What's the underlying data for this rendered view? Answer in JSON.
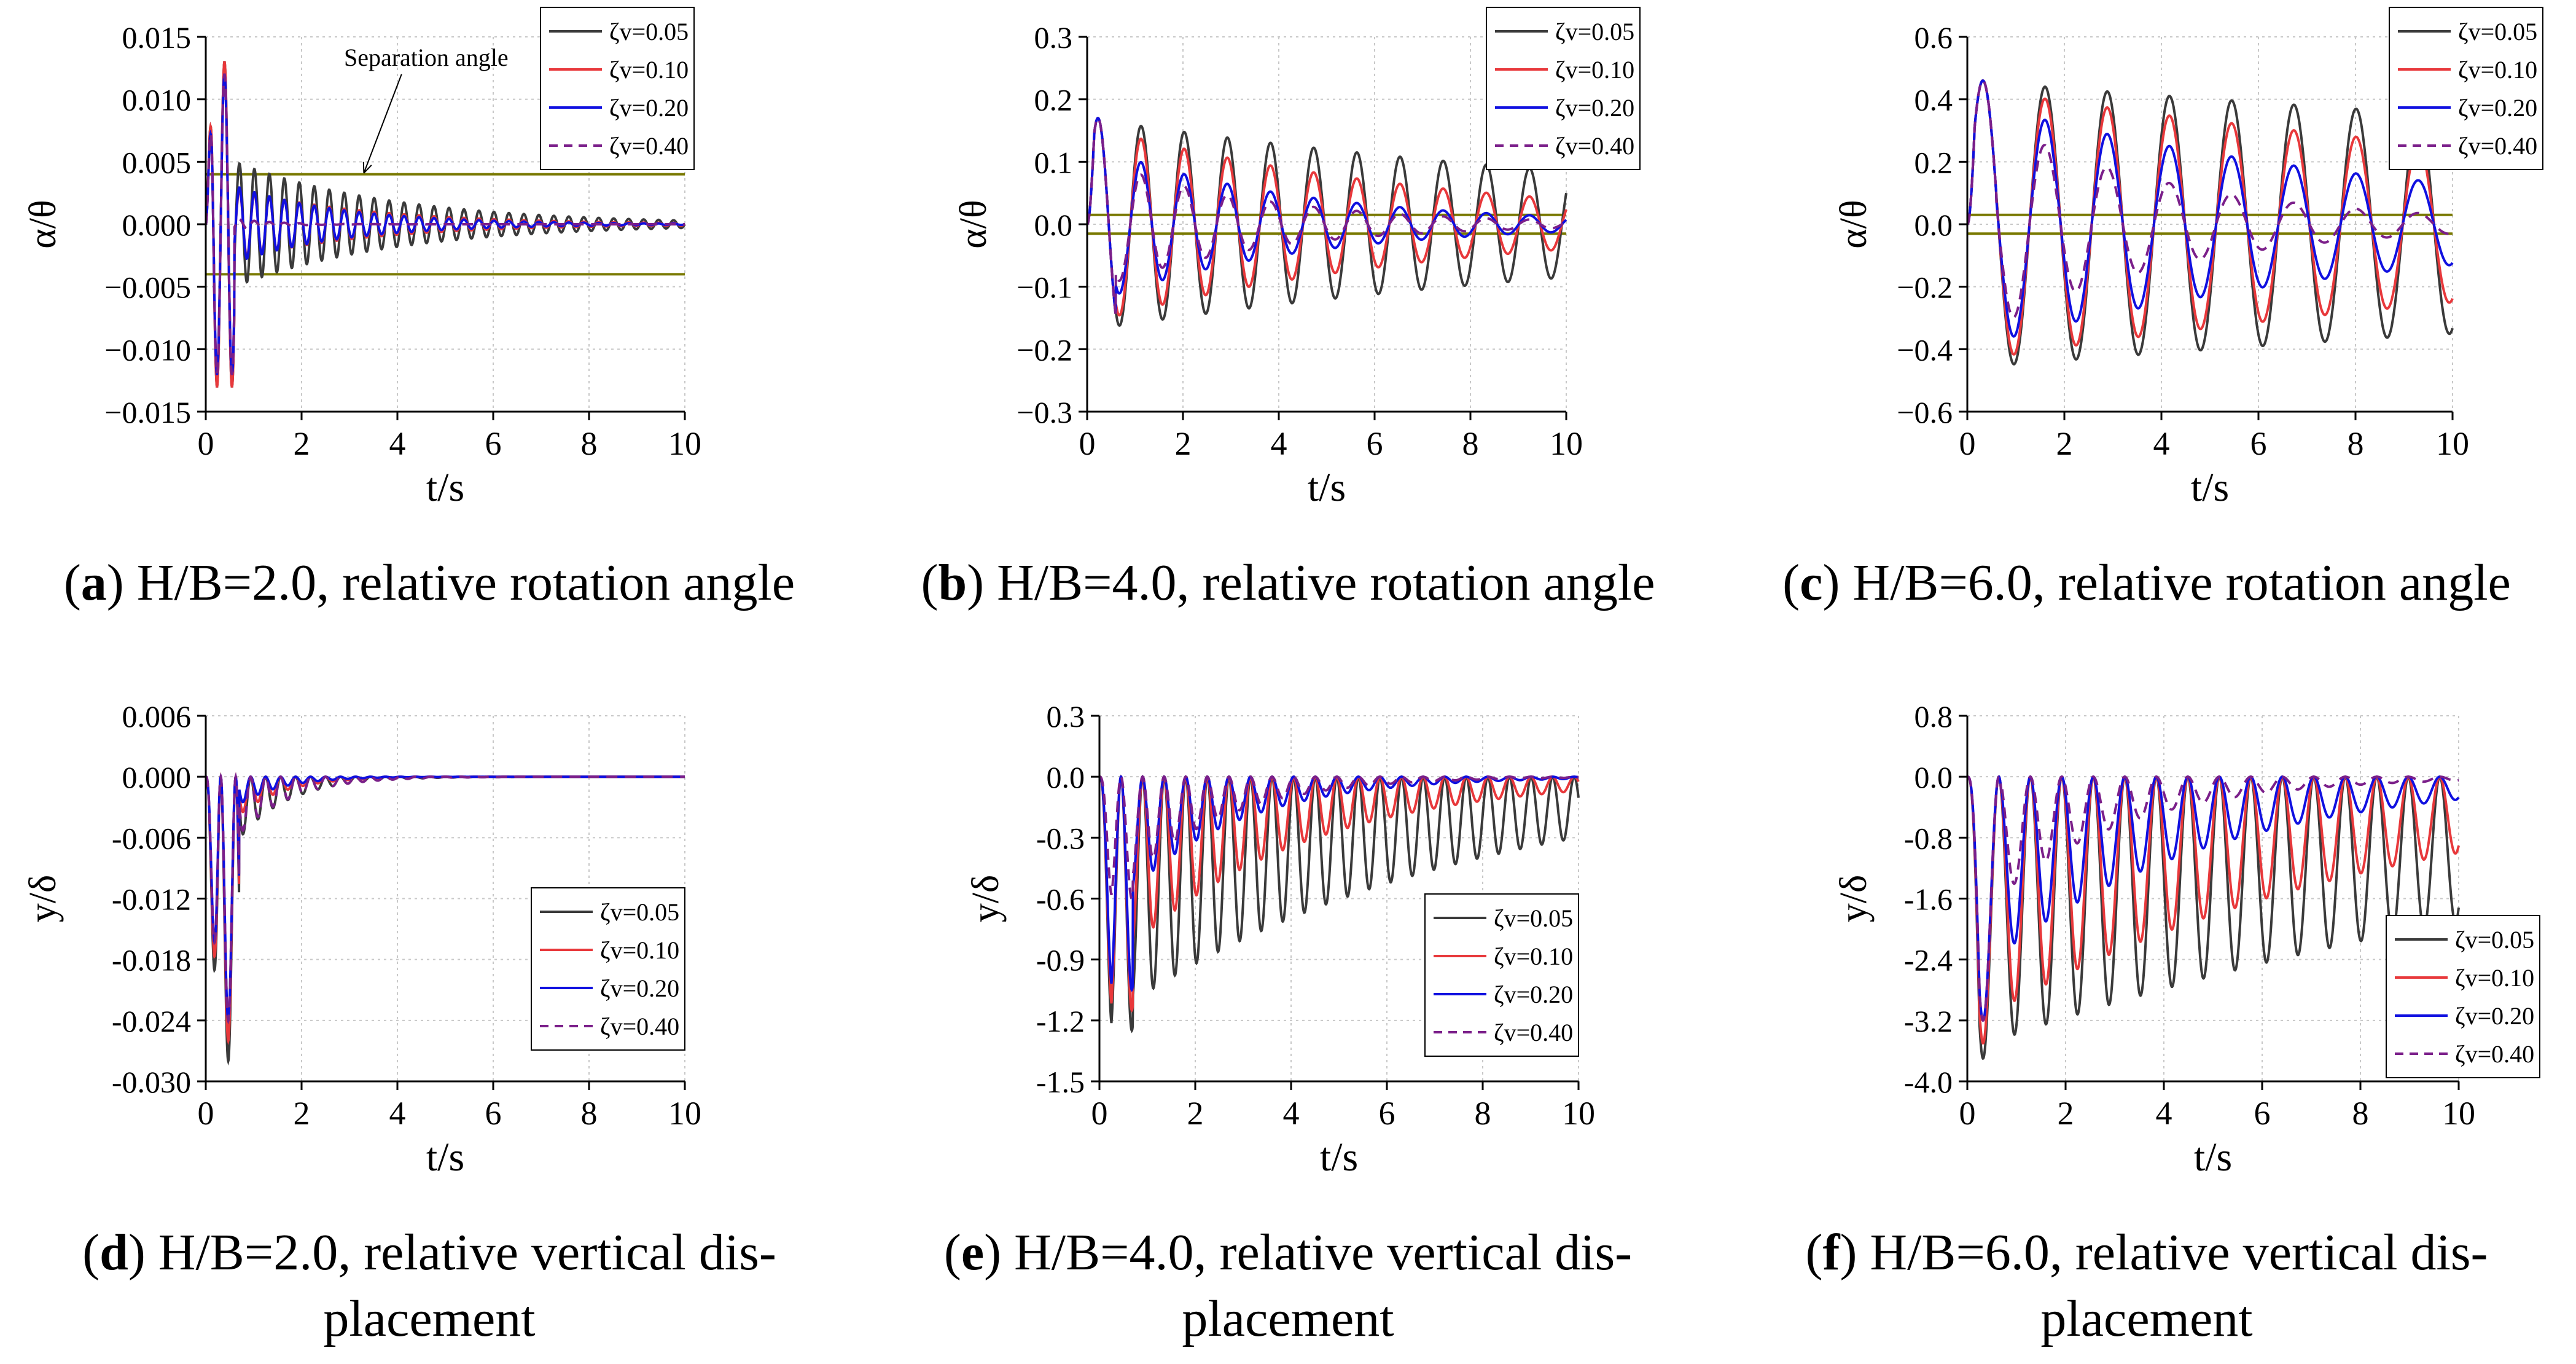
{
  "figure": {
    "legend_labels": [
      "ζv=0.05",
      "ζv=0.10",
      "ζv=0.20",
      "ζv=0.40"
    ],
    "series_colors": {
      "zeta_0.05": "#3a3a3a",
      "zeta_0.10": "#e8383b",
      "zeta_0.20": "#1010e0",
      "zeta_0.40": "#7b1f8a",
      "separation_line": "#7a7a00"
    }
  },
  "captions": [
    {
      "letter": "a",
      "pre": "(",
      "post": ") H/B=2.0, relative rotation angle",
      "line2": ""
    },
    {
      "letter": "b",
      "pre": "(",
      "post": ") H/B=4.0, relative rotation angle",
      "line2": ""
    },
    {
      "letter": "c",
      "pre": "(",
      "post": ") H/B=6.0, relative rotation angle",
      "line2": ""
    },
    {
      "letter": "d",
      "pre": "(",
      "post": ") H/B=2.0, relative vertical dis-",
      "line2": "placement"
    },
    {
      "letter": "e",
      "pre": "(",
      "post": ") H/B=4.0, relative vertical dis-",
      "line2": "placement"
    },
    {
      "letter": "f",
      "pre": "(",
      "post": ") H/B=6.0, relative vertical dis-",
      "line2": "placement"
    }
  ],
  "chart_data": [
    {
      "id": "a",
      "type": "line",
      "title": "H/B=2.0, relative rotation angle",
      "xlabel": "t/s",
      "ylabel": "α/θ",
      "xlim": [
        0,
        10
      ],
      "ylim": [
        -0.015,
        0.015
      ],
      "xticks": [
        0,
        2,
        4,
        6,
        8,
        10
      ],
      "yticks": [
        -0.015,
        -0.01,
        -0.005,
        0.0,
        0.005,
        0.01,
        0.015
      ],
      "ytick_labels": [
        "−0.015",
        "−0.010",
        "−0.005",
        "0.000",
        "0.005",
        "0.010",
        "0.015"
      ],
      "grid": true,
      "legend_position": "top-right",
      "reference_lines": [
        0.004,
        -0.004
      ],
      "annotation": {
        "text": "Separation angle",
        "x": 4.6,
        "y": 0.0127,
        "target_x": 3.3,
        "target_y": 0.0041
      },
      "series": [
        {
          "name": "ζv=0.05",
          "kind": "decay",
          "amp1": 0.013,
          "amp2": 0.006,
          "amp_end": 0.0003,
          "freq": 3.2
        },
        {
          "name": "ζv=0.10",
          "kind": "decay",
          "amp1": 0.013,
          "amp2": 0.0035,
          "amp_end": 0.0001,
          "freq": 3.2
        },
        {
          "name": "ζv=0.20",
          "kind": "decay",
          "amp1": 0.012,
          "amp2": 0.004,
          "amp_end": 5e-05,
          "freq": 3.2
        },
        {
          "name": "ζv=0.40",
          "kind": "decay",
          "amp1": 0.012,
          "amp2": 0.001,
          "amp_end": 0.0,
          "freq": 3.2
        }
      ]
    },
    {
      "id": "b",
      "type": "line",
      "title": "H/B=4.0, relative rotation angle",
      "xlabel": "t/s",
      "ylabel": "α/θ",
      "xlim": [
        0,
        10
      ],
      "ylim": [
        -0.3,
        0.3
      ],
      "xticks": [
        0,
        2,
        4,
        6,
        8,
        10
      ],
      "yticks": [
        -0.3,
        -0.2,
        -0.1,
        0.0,
        0.1,
        0.2,
        0.3
      ],
      "ytick_labels": [
        "−0.3",
        "−0.2",
        "−0.1",
        "0.0",
        "0.1",
        "0.2",
        "0.3"
      ],
      "grid": true,
      "legend_position": "top-right",
      "reference_lines": [
        0.015,
        -0.015
      ],
      "series": [
        {
          "name": "ζv=0.05",
          "kind": "decay",
          "amp1": 0.17,
          "amp2": 0.17,
          "amp_end": 0.085,
          "freq": 1.11
        },
        {
          "name": "ζv=0.10",
          "kind": "decay",
          "amp1": 0.17,
          "amp2": 0.16,
          "amp_end": 0.04,
          "freq": 1.11
        },
        {
          "name": "ζv=0.20",
          "kind": "decay",
          "amp1": 0.17,
          "amp2": 0.13,
          "amp_end": 0.012,
          "freq": 1.11
        },
        {
          "name": "ζv=0.40",
          "kind": "decay",
          "amp1": 0.17,
          "amp2": 0.11,
          "amp_end": 0.006,
          "freq": 1.11
        }
      ]
    },
    {
      "id": "c",
      "type": "line",
      "title": "H/B=6.0, relative rotation angle",
      "xlabel": "t/s",
      "ylabel": "α/θ",
      "xlim": [
        0,
        10
      ],
      "ylim": [
        -0.6,
        0.6
      ],
      "xticks": [
        0,
        2,
        4,
        6,
        8,
        10
      ],
      "yticks": [
        -0.6,
        -0.4,
        -0.2,
        0.0,
        0.2,
        0.4,
        0.6
      ],
      "ytick_labels": [
        "−0.6",
        "−0.4",
        "−0.2",
        "0.0",
        "0.2",
        "0.4",
        "0.6"
      ],
      "grid": true,
      "legend_position": "top-right",
      "reference_lines": [
        0.03,
        -0.03
      ],
      "series": [
        {
          "name": "ζv=0.05",
          "kind": "decay",
          "amp1": 0.46,
          "amp2": 0.46,
          "amp_end": 0.35,
          "freq": 0.78
        },
        {
          "name": "ζv=0.10",
          "kind": "decay",
          "amp1": 0.46,
          "amp2": 0.44,
          "amp_end": 0.25,
          "freq": 0.78
        },
        {
          "name": "ζv=0.20",
          "kind": "decay",
          "amp1": 0.46,
          "amp2": 0.4,
          "amp_end": 0.13,
          "freq": 0.78
        },
        {
          "name": "ζv=0.40",
          "kind": "decay",
          "amp1": 0.46,
          "amp2": 0.38,
          "amp_end": 0.03,
          "freq": 0.78
        }
      ]
    },
    {
      "id": "d",
      "type": "line",
      "title": "H/B=2.0, relative vertical displacement",
      "xlabel": "t/s",
      "ylabel": "y/δ",
      "xlim": [
        0,
        10
      ],
      "ylim": [
        -0.03,
        0.006
      ],
      "xticks": [
        0,
        2,
        4,
        6,
        8,
        10
      ],
      "yticks": [
        -0.03,
        -0.024,
        -0.018,
        -0.012,
        -0.006,
        0.0,
        0.006
      ],
      "ytick_labels": [
        "-0.030",
        "-0.024",
        "-0.018",
        "-0.012",
        "-0.006",
        "0.000",
        "0.006"
      ],
      "grid": true,
      "legend_position": "bottom-right",
      "series": [
        {
          "name": "ζv=0.05",
          "kind": "bounce",
          "amp1": -0.028,
          "amp2": -0.012,
          "amp_end": 0.0,
          "freq": 3.2
        },
        {
          "name": "ζv=0.10",
          "kind": "bounce",
          "amp1": -0.026,
          "amp2": -0.008,
          "amp_end": 0.0,
          "freq": 3.2
        },
        {
          "name": "ζv=0.20",
          "kind": "bounce",
          "amp1": -0.024,
          "amp2": -0.006,
          "amp_end": 0.0,
          "freq": 3.2
        },
        {
          "name": "ζv=0.40",
          "kind": "bounce",
          "amp1": -0.024,
          "amp2": -0.011,
          "amp_end": 0.0,
          "freq": 3.2
        }
      ]
    },
    {
      "id": "e",
      "type": "line",
      "title": "H/B=4.0, relative vertical displacement",
      "xlabel": "t/s",
      "ylabel": "y/δ",
      "xlim": [
        0,
        10
      ],
      "ylim": [
        -1.5,
        0.3
      ],
      "xticks": [
        0,
        2,
        4,
        6,
        8,
        10
      ],
      "yticks": [
        -1.5,
        -1.2,
        -0.9,
        -0.6,
        -0.3,
        0.0,
        0.3
      ],
      "ytick_labels": [
        "-1.5",
        "-1.2",
        "-0.9",
        "-0.6",
        "-0.3",
        "0.0",
        "0.3"
      ],
      "grid": true,
      "legend_position": "bottom-right",
      "series": [
        {
          "name": "ζv=0.05",
          "kind": "bounce",
          "amp1": -1.25,
          "amp2": -1.22,
          "amp_end": -0.3,
          "freq": 2.22
        },
        {
          "name": "ζv=0.10",
          "kind": "bounce",
          "amp1": -1.15,
          "amp2": -1.0,
          "amp_end": -0.07,
          "freq": 2.22
        },
        {
          "name": "ζv=0.20",
          "kind": "bounce",
          "amp1": -1.05,
          "amp2": -0.75,
          "amp_end": -0.01,
          "freq": 2.22
        },
        {
          "name": "ζv=0.40",
          "kind": "bounce",
          "amp1": -0.6,
          "amp2": -0.7,
          "amp_end": -0.005,
          "freq": 2.22
        }
      ]
    },
    {
      "id": "f",
      "type": "line",
      "title": "H/B=6.0, relative vertical displacement",
      "xlabel": "t/s",
      "ylabel": "y/δ",
      "xlim": [
        0,
        10
      ],
      "ylim": [
        -4.0,
        0.8
      ],
      "xticks": [
        0,
        2,
        4,
        6,
        8,
        10
      ],
      "yticks": [
        -4.0,
        -3.2,
        -2.4,
        -1.6,
        -0.8,
        0.0,
        0.8
      ],
      "ytick_labels": [
        "-4.0",
        "-3.2",
        "-2.4",
        "-1.6",
        "-0.8",
        "0.0",
        "0.8"
      ],
      "grid": true,
      "legend_position": "right",
      "series": [
        {
          "name": "ζv=0.05",
          "kind": "bounce",
          "amp1": -3.7,
          "amp2": -3.6,
          "amp_end": -1.9,
          "freq": 1.56
        },
        {
          "name": "ζv=0.10",
          "kind": "bounce",
          "amp1": -3.5,
          "amp2": -3.3,
          "amp_end": -1.0,
          "freq": 1.56
        },
        {
          "name": "ζv=0.20",
          "kind": "bounce",
          "amp1": -3.2,
          "amp2": -2.7,
          "amp_end": -0.3,
          "freq": 1.56
        },
        {
          "name": "ζv=0.40",
          "kind": "bounce",
          "amp1": -3.2,
          "amp2": -2.0,
          "amp_end": -0.05,
          "freq": 1.56
        }
      ]
    }
  ]
}
